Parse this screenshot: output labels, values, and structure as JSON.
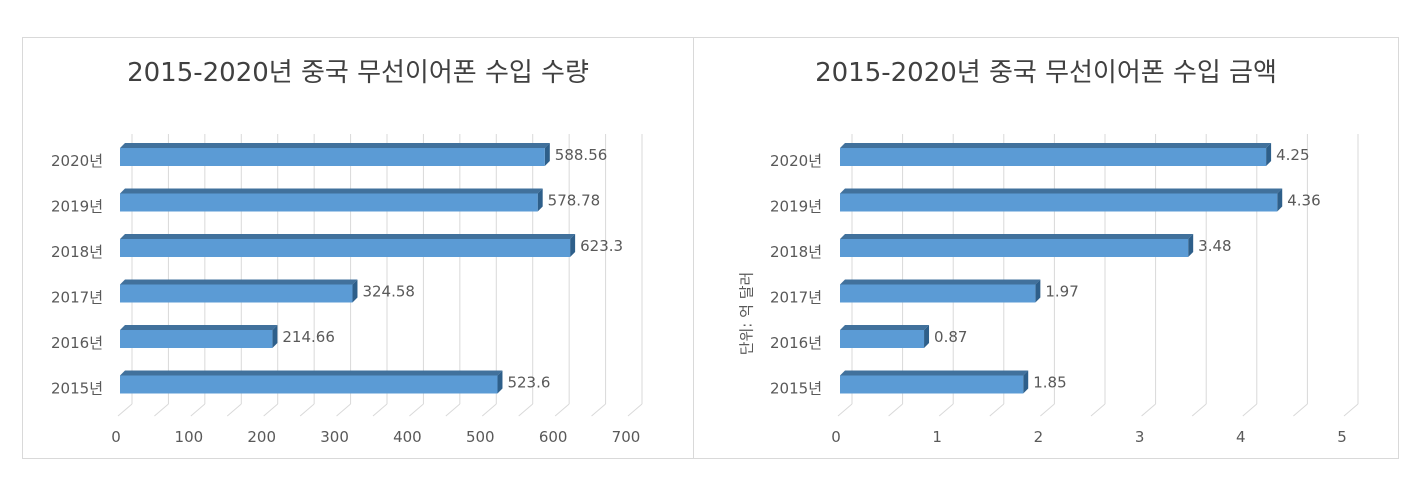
{
  "charts": [
    {
      "title": "2015-2020년 중국 무선이어폰 수입 수량",
      "unit_label": ""
    },
    {
      "title": "2015-2020년 중국 무선이어폰 수입 금액",
      "unit_label": "단위: 억 달러"
    }
  ],
  "colors": {
    "bar_front": "#5b9bd5",
    "bar_top": "#41719c",
    "bar_side": "#2e5f8a",
    "grid": "#d9d9d9",
    "text": "#595959"
  },
  "chart_data": [
    {
      "type": "bar",
      "orientation": "horizontal",
      "title": "2015-2020년 중국 무선이어폰 수입 수량",
      "categories": [
        "2020년",
        "2019년",
        "2018년",
        "2017년",
        "2016년",
        "2015년"
      ],
      "values": [
        588.56,
        578.78,
        623.3,
        324.58,
        214.66,
        523.6
      ],
      "data_labels": [
        "588.56",
        "578.78",
        "623.3",
        "324.58",
        "214.66",
        "523.6"
      ],
      "xlim": [
        0,
        700
      ],
      "x_ticks": [
        0,
        100,
        200,
        300,
        400,
        500,
        600,
        700
      ],
      "grid": true,
      "legend": "none",
      "style": "3d"
    },
    {
      "type": "bar",
      "orientation": "horizontal",
      "title": "2015-2020년 중국 무선이어폰 수입 금액",
      "ylabel": "단위: 억 달러",
      "categories": [
        "2020년",
        "2019년",
        "2018년",
        "2017년",
        "2016년",
        "2015년"
      ],
      "values": [
        4.25,
        4.36,
        3.48,
        1.97,
        0.87,
        1.85
      ],
      "data_labels": [
        "4.25",
        "4.36",
        "3.48",
        "1.97",
        "0.87",
        "1.85"
      ],
      "xlim": [
        0,
        5
      ],
      "x_ticks": [
        0,
        1,
        2,
        3,
        4,
        5
      ],
      "grid": true,
      "legend": "none",
      "style": "3d"
    }
  ]
}
